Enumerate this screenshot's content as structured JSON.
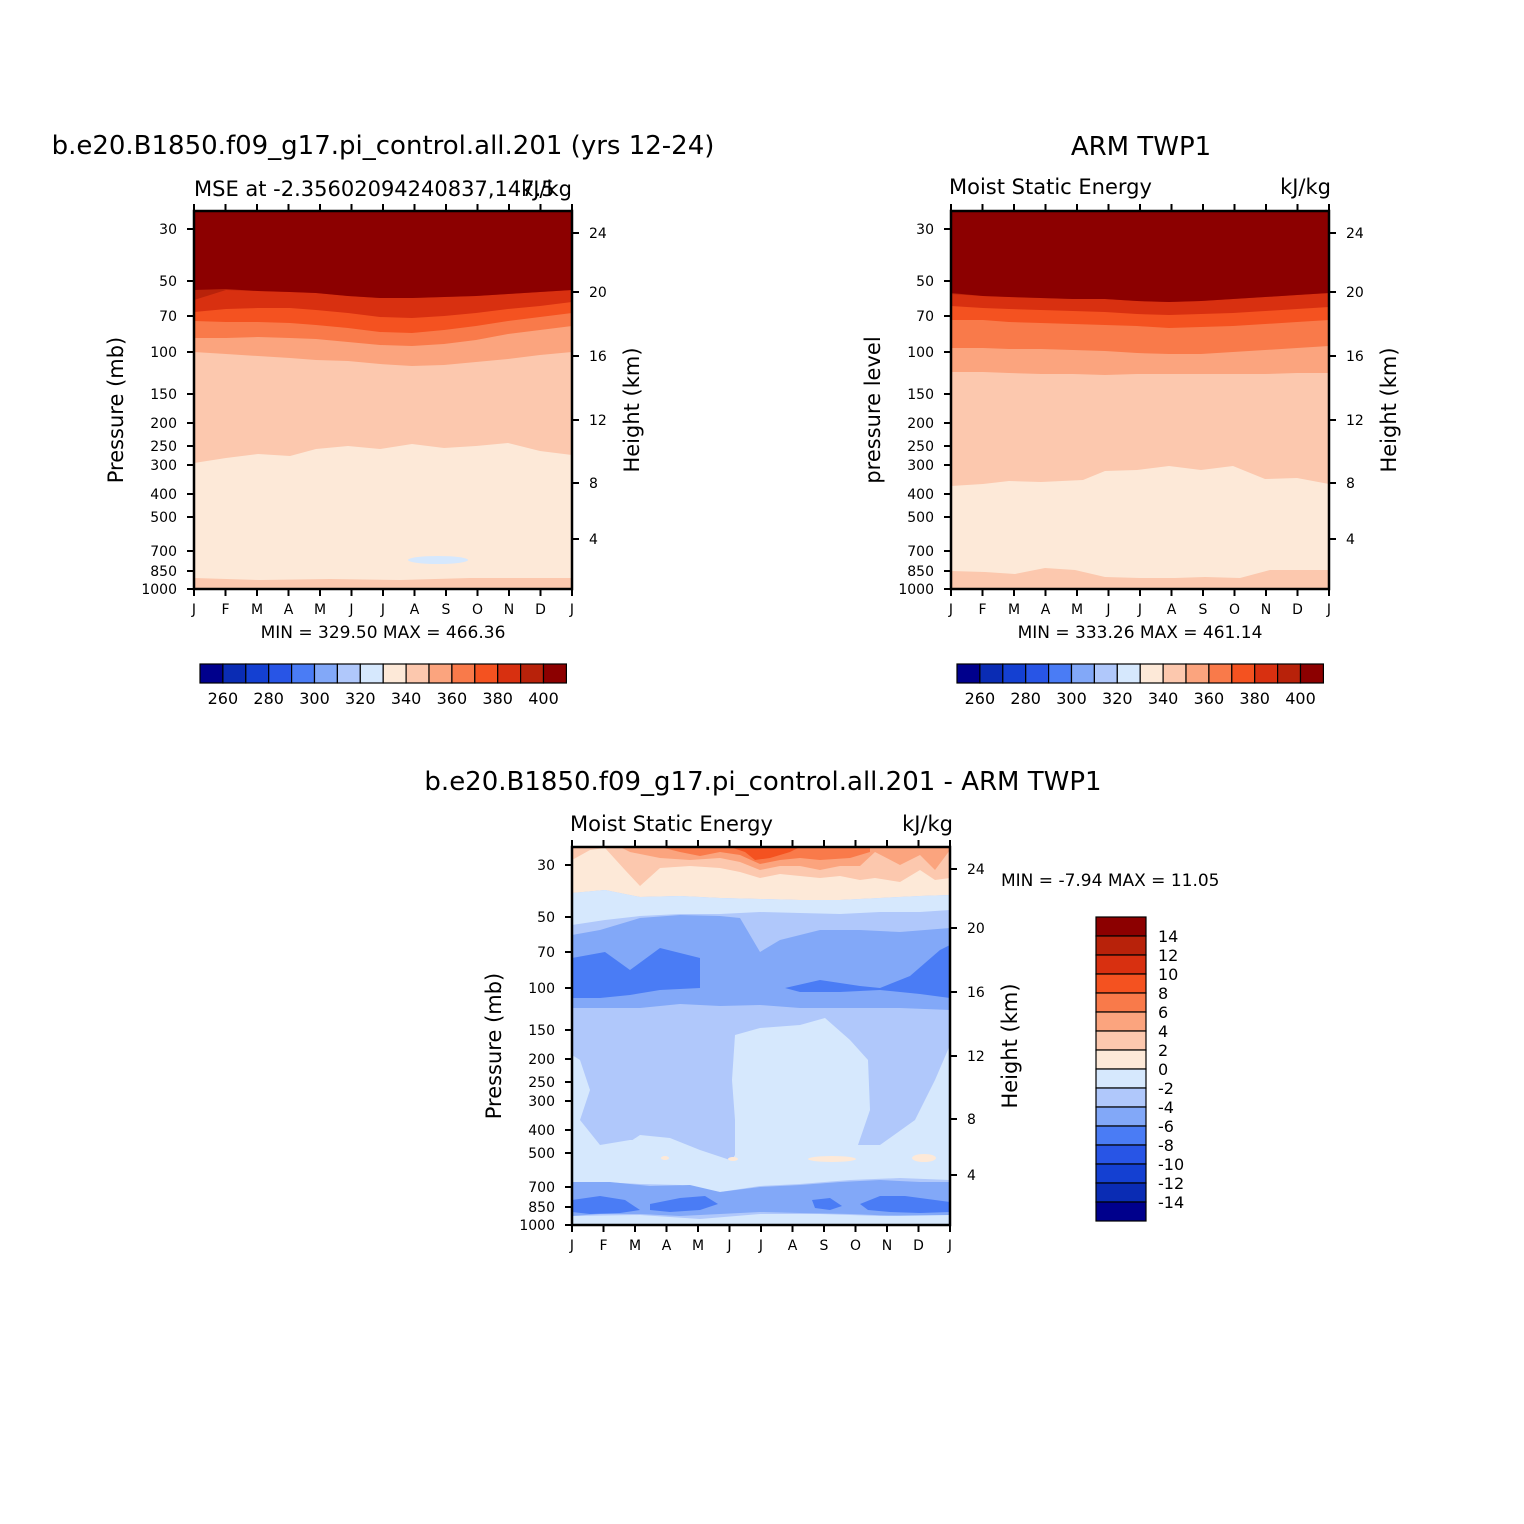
{
  "colors": {
    "mse_levels": [
      "#00008c",
      "#0a2cb4",
      "#1440d2",
      "#2855e6",
      "#4a7cf5",
      "#82a8f8",
      "#b0c8fb",
      "#d6e8fd",
      "#fde9d8",
      "#fcc8ae",
      "#fba47e",
      "#f97a4a",
      "#f45220",
      "#d83010",
      "#b8220a",
      "#8c0000"
    ],
    "diff_levels": [
      "#00008c",
      "#0a2cb4",
      "#1440d2",
      "#2855e6",
      "#4a7cf5",
      "#82a8f8",
      "#b0c8fb",
      "#d6e8fd",
      "#fde9d8",
      "#fcc8ae",
      "#fba47e",
      "#f97a4a",
      "#f45220",
      "#d83010",
      "#b8220a",
      "#8c0000"
    ]
  },
  "axes": {
    "pressure_ticks": [
      "30",
      "50",
      "70",
      "100",
      "150",
      "200",
      "250",
      "300",
      "400",
      "500",
      "700",
      "850",
      "1000"
    ],
    "height_ticks": [
      "24",
      "20",
      "16",
      "12",
      "8",
      "4"
    ],
    "months": [
      "J",
      "F",
      "M",
      "A",
      "M",
      "J",
      "J",
      "A",
      "S",
      "O",
      "N",
      "D",
      "J"
    ]
  },
  "chart_data": [
    {
      "type": "heatmap",
      "title": "b.e20.B1850.f09_g17.pi_control.all.201 (yrs 12-24)",
      "left_subtitle": "MSE at -2.35602094240837,147.5",
      "right_subtitle": "kJ/kg",
      "ylabel": "Pressure (mb)",
      "y2label": "Height (km)",
      "stats": "MIN = 329.50 MAX = 466.36",
      "colorbar_labels": [
        "260",
        "280",
        "300",
        "320",
        "340",
        "360",
        "380",
        "400"
      ],
      "min": 329.5,
      "max": 466.36
    },
    {
      "type": "heatmap",
      "title": "ARM TWP1",
      "left_subtitle": "Moist Static Energy",
      "right_subtitle": "kJ/kg",
      "ylabel": "pressure level",
      "y2label": "Height (km)",
      "stats": "MIN = 333.26 MAX = 461.14",
      "colorbar_labels": [
        "260",
        "280",
        "300",
        "320",
        "340",
        "360",
        "380",
        "400"
      ],
      "min": 333.26,
      "max": 461.14
    },
    {
      "type": "heatmap",
      "title": "b.e20.B1850.f09_g17.pi_control.all.201 - ARM TWP1",
      "left_subtitle": "Moist Static Energy",
      "right_subtitle": "kJ/kg",
      "ylabel": "Pressure (mb)",
      "y2label": "Height (km)",
      "stats": "MIN = -7.94 MAX = 11.05",
      "colorbar_labels": [
        "14",
        "12",
        "10",
        "8",
        "6",
        "4",
        "2",
        "0",
        "-2",
        "-4",
        "-6",
        "-8",
        "-10",
        "-12",
        "-14"
      ],
      "min": -7.94,
      "max": 11.05
    }
  ]
}
